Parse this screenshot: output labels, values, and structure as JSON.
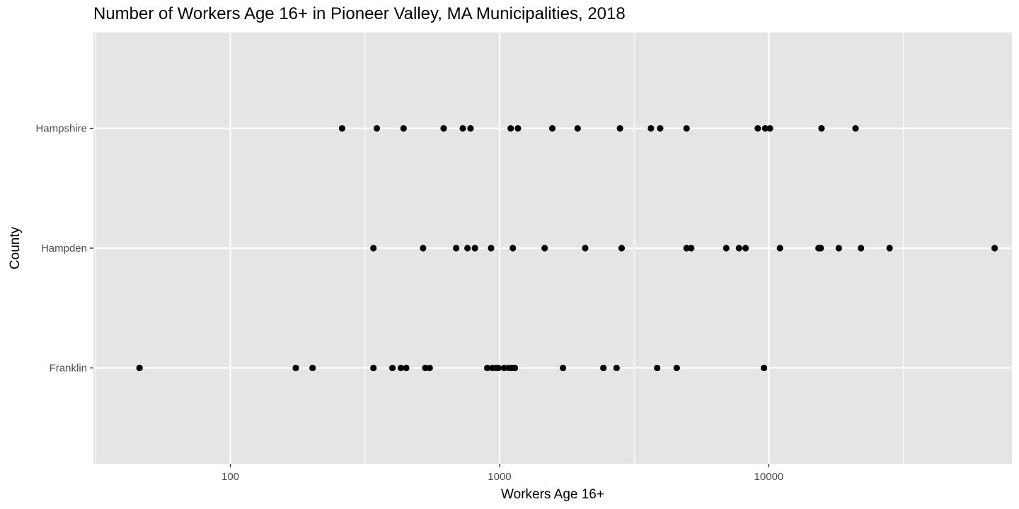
{
  "chart_data": {
    "type": "scatter",
    "title": "Number of Workers Age 16+ in Pioneer Valley, MA Municipalities, 2018",
    "xlabel": "Workers Age 16+",
    "ylabel": "County",
    "x_scale": "log10",
    "xlim": [
      31,
      80000
    ],
    "x_ticks": [
      100,
      1000,
      10000
    ],
    "x_tick_labels": [
      "100",
      "1000",
      "10000"
    ],
    "categories": [
      "Franklin",
      "Hampden",
      "Hampshire"
    ],
    "grid": true,
    "legend": "none",
    "point_color": "#000000",
    "panel_color": "#e5e5e5",
    "grid_color": "#ffffff",
    "series": [
      {
        "category": "Hampshire",
        "values": [
          260,
          350,
          440,
          620,
          730,
          780,
          1100,
          1170,
          1570,
          1950,
          2800,
          3650,
          3950,
          4950,
          9100,
          9700,
          10100,
          15700,
          21000
        ]
      },
      {
        "category": "Hampden",
        "values": [
          340,
          520,
          690,
          760,
          810,
          930,
          1120,
          1470,
          2080,
          2840,
          4950,
          5150,
          6950,
          7750,
          8200,
          11000,
          15300,
          15600,
          18200,
          22000,
          28100,
          69000
        ]
      },
      {
        "category": "Franklin",
        "values": [
          46,
          175,
          202,
          340,
          400,
          430,
          450,
          530,
          550,
          900,
          940,
          970,
          990,
          1040,
          1080,
          1110,
          1140,
          1720,
          2430,
          2720,
          3850,
          4550,
          9600
        ]
      }
    ]
  }
}
